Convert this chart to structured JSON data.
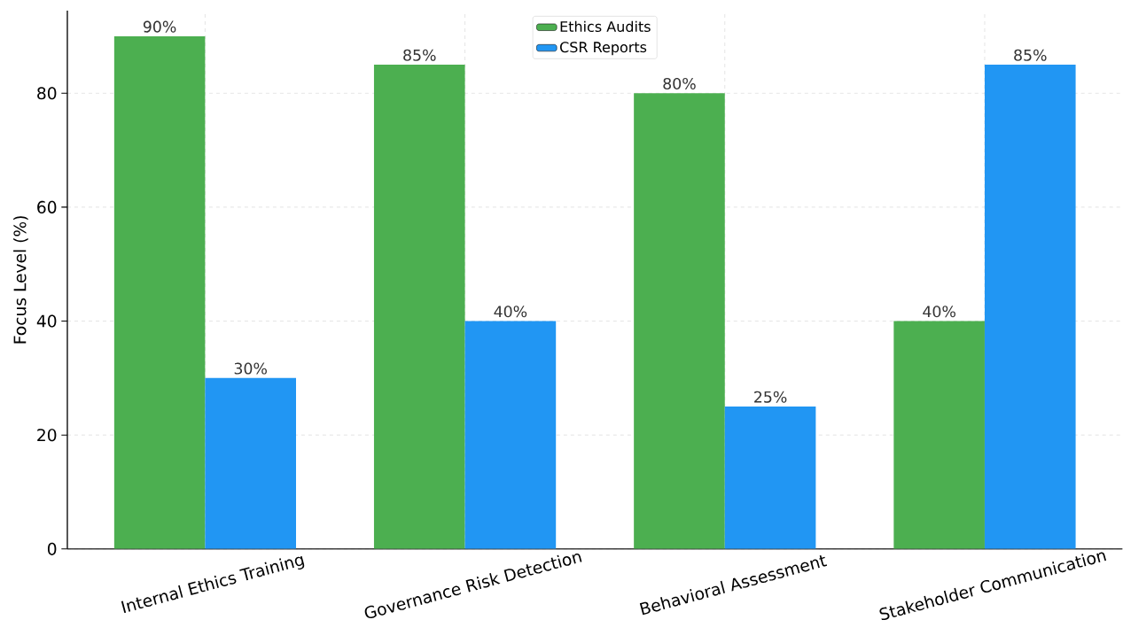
{
  "chart_data": {
    "type": "bar",
    "ylabel": "Focus Level (%)",
    "categories": [
      "Internal Ethics Training",
      "Governance Risk Detection",
      "Behavioral Assessment",
      "Stakeholder Communication"
    ],
    "series": [
      {
        "name": "Ethics Audits",
        "color": "#4caf50",
        "values": [
          90,
          85,
          80,
          40
        ],
        "value_labels": [
          "90%",
          "85%",
          "80%",
          "40%"
        ]
      },
      {
        "name": "CSR Reports",
        "color": "#2196f3",
        "values": [
          30,
          40,
          25,
          85
        ],
        "value_labels": [
          "30%",
          "40%",
          "25%",
          "85%"
        ]
      }
    ],
    "ylim": [
      0,
      94.5
    ],
    "yticks": [
      0,
      20,
      40,
      60,
      80
    ],
    "grid": true,
    "legend": "top"
  }
}
